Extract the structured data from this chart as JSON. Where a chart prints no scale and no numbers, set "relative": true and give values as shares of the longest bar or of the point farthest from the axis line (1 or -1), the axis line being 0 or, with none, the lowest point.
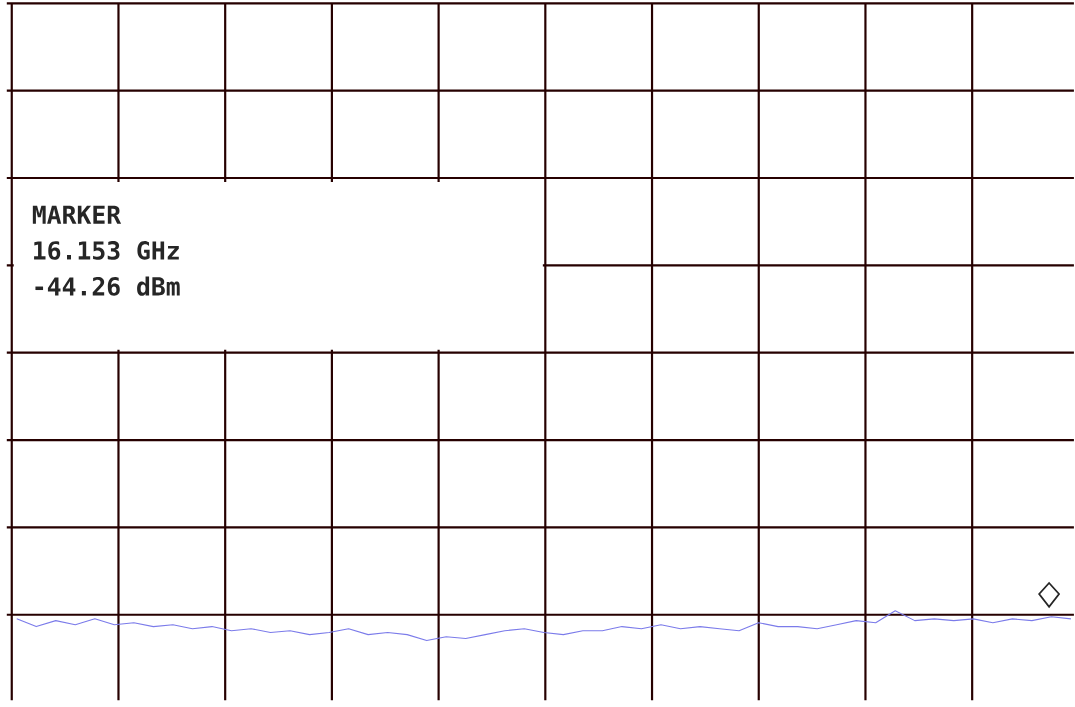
{
  "chart_data": {
    "type": "line",
    "relative": true,
    "grid": true,
    "categories": [
      null,
      null,
      null,
      null,
      null,
      null,
      null,
      null,
      null,
      null,
      null,
      null,
      null,
      null,
      null,
      null,
      null,
      null,
      null,
      null,
      null,
      null,
      null,
      null,
      null,
      null,
      null,
      null,
      null,
      null,
      null,
      null,
      null,
      null,
      null,
      null,
      null,
      null,
      null,
      null,
      null,
      null,
      null,
      null,
      null,
      null,
      null,
      null,
      null,
      null,
      null,
      null,
      null,
      null,
      null
    ],
    "series": [
      {
        "color": "#7b7bea",
        "values": [
          0.73,
          0.47,
          0.67,
          0.53,
          0.73,
          0.53,
          0.6,
          0.47,
          0.53,
          0.4,
          0.47,
          0.33,
          0.4,
          0.27,
          0.33,
          0.2,
          0.27,
          0.4,
          0.2,
          0.27,
          0.2,
          0,
          0.13,
          0.07,
          0.2,
          0.33,
          0.4,
          0.27,
          0.2,
          0.33,
          0.33,
          0.47,
          0.4,
          0.53,
          0.4,
          0.47,
          0.4,
          0.33,
          0.6,
          0.47,
          0.47,
          0.4,
          0.53,
          0.67,
          0.6,
          1,
          0.67,
          0.73,
          0.67,
          0.73,
          0.6,
          0.73,
          0.67,
          0.8,
          0.73
        ]
      }
    ],
    "annotations": [
      "MARKER",
      "16.153 GHz",
      "-44.26 dBm"
    ]
  }
}
